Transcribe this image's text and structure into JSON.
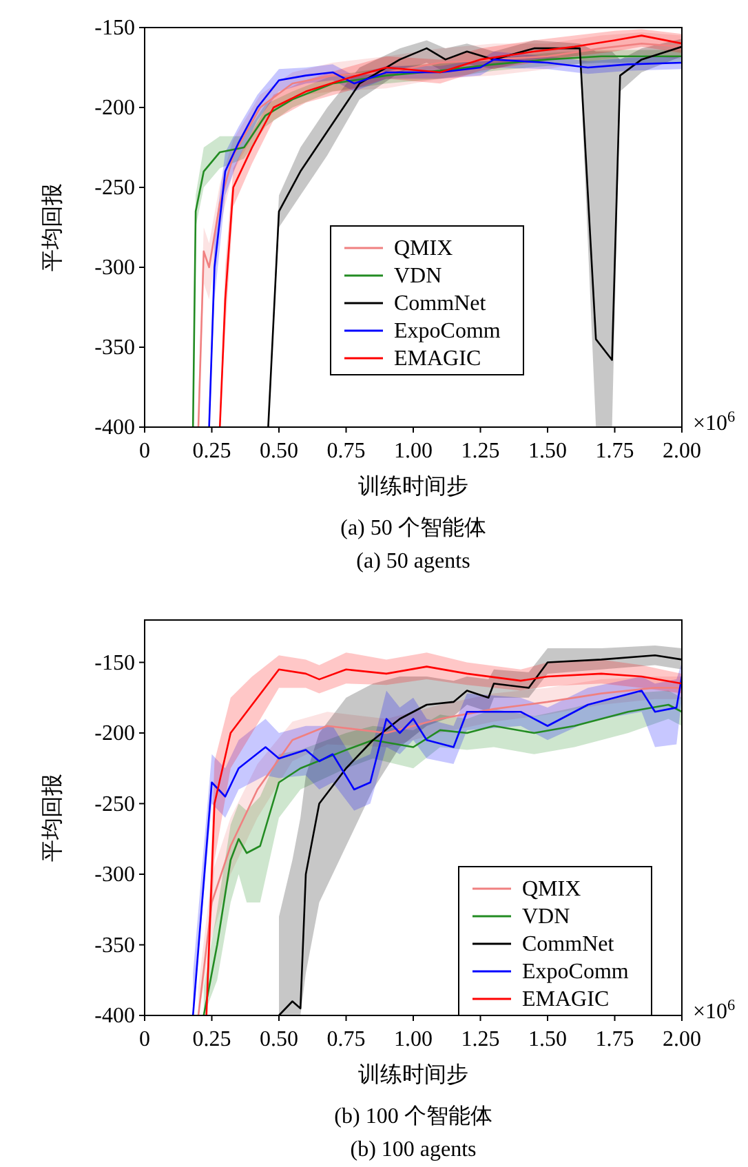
{
  "chart_data": [
    {
      "type": "line",
      "title": "(a) 50 个智能体",
      "subtitle": "(a) 50 agents",
      "xlabel": "训练时间步",
      "ylabel": "平均回报",
      "annotations": [
        "×10$^{6}$"
      ],
      "xlim": [
        0,
        2
      ],
      "ylim": [
        -400,
        -150
      ],
      "xticks": [
        0,
        0.25,
        {
          "value": 0.5,
          "label": "0.50"
        },
        0.75,
        {
          "value": 1,
          "label": "1.00"
        },
        1.25,
        {
          "value": 1.5,
          "label": "1.50"
        },
        1.75,
        {
          "value": 2,
          "label": "2.00"
        }
      ],
      "yticks": [
        -400,
        -350,
        -300,
        -250,
        -200,
        -150
      ],
      "legend": "bottom",
      "grid": false,
      "line_style": "solid",
      "marker": "none",
      "series": [
        {
          "name": "QMIX",
          "color": "#f08080",
          "x": [
            0.2,
            0.22,
            0.24,
            0.28,
            0.33,
            0.43,
            0.55,
            0.7,
            0.9,
            1.1,
            1.3,
            1.5,
            1.7,
            1.85,
            2.0
          ],
          "values": [
            -400,
            -290,
            -300,
            -260,
            -230,
            -200,
            -185,
            -180,
            -178,
            -172,
            -170,
            -168,
            -163,
            -160,
            -162
          ],
          "lower": [
            -400,
            -310,
            -320,
            -275,
            -240,
            -210,
            -193,
            -190,
            -188,
            -182,
            -180,
            -176,
            -170,
            -167,
            -170
          ],
          "upper": [
            -380,
            -275,
            -285,
            -248,
            -220,
            -192,
            -178,
            -172,
            -168,
            -163,
            -160,
            -160,
            -155,
            -153,
            -155
          ]
        },
        {
          "name": "VDN",
          "color": "#228b22",
          "x": [
            0.18,
            0.19,
            0.22,
            0.28,
            0.37,
            0.45,
            0.55,
            0.7,
            0.9,
            1.1,
            1.3,
            1.5,
            1.7,
            2.0
          ],
          "values": [
            -400,
            -265,
            -240,
            -228,
            -225,
            -205,
            -195,
            -185,
            -180,
            -177,
            -173,
            -170,
            -168,
            -168
          ],
          "lower": [
            -400,
            -275,
            -250,
            -238,
            -232,
            -212,
            -200,
            -190,
            -185,
            -182,
            -177,
            -174,
            -172,
            -172
          ],
          "upper": [
            -390,
            -255,
            -225,
            -218,
            -218,
            -198,
            -190,
            -180,
            -175,
            -172,
            -169,
            -166,
            -164,
            -164
          ]
        },
        {
          "name": "CommNet",
          "color": "#000000",
          "x": [
            0.46,
            0.5,
            0.58,
            0.68,
            0.8,
            0.95,
            1.05,
            1.12,
            1.2,
            1.3,
            1.45,
            1.62,
            1.68,
            1.74,
            1.77,
            1.85,
            2.0
          ],
          "values": [
            -400,
            -265,
            -240,
            -215,
            -185,
            -170,
            -163,
            -170,
            -165,
            -170,
            -163,
            -163,
            -345,
            -358,
            -180,
            -170,
            -162
          ],
          "lower": [
            -400,
            -275,
            -255,
            -230,
            -195,
            -178,
            -172,
            -178,
            -173,
            -176,
            -170,
            -168,
            -400,
            -400,
            -190,
            -178,
            -168
          ],
          "upper": [
            -400,
            -255,
            -225,
            -200,
            -175,
            -163,
            -158,
            -163,
            -160,
            -165,
            -158,
            -160,
            -165,
            -165,
            -170,
            -163,
            -157
          ]
        },
        {
          "name": "ExpoComm",
          "color": "#0000ff",
          "x": [
            0.24,
            0.26,
            0.3,
            0.35,
            0.42,
            0.5,
            0.6,
            0.7,
            0.78,
            0.9,
            1.1,
            1.25,
            1.3,
            1.5,
            1.65,
            1.8,
            2.0
          ],
          "values": [
            -400,
            -300,
            -240,
            -222,
            -200,
            -183,
            -180,
            -178,
            -185,
            -178,
            -178,
            -175,
            -170,
            -172,
            -175,
            -173,
            -172
          ],
          "lower": [
            -400,
            -320,
            -255,
            -232,
            -208,
            -190,
            -185,
            -183,
            -190,
            -182,
            -182,
            -180,
            -175,
            -176,
            -179,
            -177,
            -176
          ],
          "upper": [
            -400,
            -280,
            -228,
            -212,
            -192,
            -176,
            -175,
            -173,
            -180,
            -174,
            -174,
            -170,
            -165,
            -168,
            -171,
            -169,
            -168
          ]
        },
        {
          "name": "EMAGIC",
          "color": "#ff0000",
          "x": [
            0.28,
            0.3,
            0.33,
            0.4,
            0.48,
            0.6,
            0.75,
            0.9,
            1.1,
            1.25,
            1.45,
            1.6,
            1.75,
            1.85,
            2.0
          ],
          "values": [
            -400,
            -320,
            -250,
            -225,
            -200,
            -190,
            -182,
            -175,
            -178,
            -170,
            -165,
            -162,
            -158,
            -155,
            -160
          ],
          "lower": [
            -400,
            -340,
            -262,
            -235,
            -208,
            -197,
            -190,
            -182,
            -185,
            -177,
            -172,
            -168,
            -165,
            -162,
            -166
          ],
          "upper": [
            -400,
            -300,
            -238,
            -215,
            -192,
            -183,
            -175,
            -168,
            -170,
            -163,
            -158,
            -155,
            -152,
            -151,
            -154
          ]
        }
      ]
    },
    {
      "type": "line",
      "title": "(b) 100 个智能体",
      "subtitle": "(b) 100 agents",
      "xlabel": "训练时间步",
      "ylabel": "平均回报",
      "annotations": [
        "×10$^{6}$"
      ],
      "xlim": [
        0,
        2
      ],
      "ylim": [
        -400,
        -120
      ],
      "xticks": [
        0,
        0.25,
        {
          "value": 0.5,
          "label": "0.50"
        },
        0.75,
        {
          "value": 1,
          "label": "1.00"
        },
        1.25,
        {
          "value": 1.5,
          "label": "1.50"
        },
        1.75,
        {
          "value": 2,
          "label": "2.00"
        }
      ],
      "yticks": [
        -400,
        -350,
        -300,
        -250,
        -200,
        -150
      ],
      "legend": "bottom right",
      "grid": false,
      "line_style": "solid",
      "marker": "none",
      "series": [
        {
          "name": "QMIX",
          "color": "#f08080",
          "x": [
            0.2,
            0.25,
            0.32,
            0.42,
            0.55,
            0.68,
            0.9,
            1.1,
            1.3,
            1.5,
            1.7,
            1.9,
            2.0
          ],
          "values": [
            -400,
            -320,
            -280,
            -240,
            -205,
            -195,
            -200,
            -190,
            -183,
            -178,
            -172,
            -168,
            -168
          ],
          "lower": [
            -400,
            -345,
            -300,
            -260,
            -220,
            -208,
            -210,
            -200,
            -192,
            -187,
            -180,
            -176,
            -176
          ],
          "upper": [
            -380,
            -300,
            -260,
            -222,
            -192,
            -185,
            -190,
            -180,
            -172,
            -168,
            -162,
            -160,
            -160
          ]
        },
        {
          "name": "VDN",
          "color": "#228b22",
          "x": [
            0.22,
            0.27,
            0.32,
            0.35,
            0.38,
            0.43,
            0.5,
            0.58,
            0.75,
            0.85,
            1.0,
            1.1,
            1.2,
            1.3,
            1.45,
            1.6,
            1.8,
            1.95,
            2.0
          ],
          "values": [
            -400,
            -350,
            -290,
            -275,
            -285,
            -280,
            -235,
            -225,
            -212,
            -205,
            -210,
            -198,
            -200,
            -195,
            -200,
            -195,
            -185,
            -180,
            -185
          ],
          "lower": [
            -400,
            -375,
            -320,
            -300,
            -320,
            -320,
            -260,
            -240,
            -225,
            -218,
            -225,
            -210,
            -212,
            -210,
            -215,
            -210,
            -200,
            -190,
            -195
          ],
          "upper": [
            -380,
            -325,
            -265,
            -250,
            -255,
            -245,
            -215,
            -212,
            -200,
            -195,
            -198,
            -187,
            -190,
            -183,
            -188,
            -182,
            -172,
            -170,
            -175
          ]
        },
        {
          "name": "CommNet",
          "color": "#000000",
          "x": [
            0.5,
            0.55,
            0.58,
            0.6,
            0.65,
            0.75,
            0.85,
            0.95,
            1.05,
            1.15,
            1.2,
            1.28,
            1.3,
            1.43,
            1.5,
            1.7,
            1.9,
            2.0
          ],
          "values": [
            -400,
            -390,
            -395,
            -300,
            -250,
            -225,
            -205,
            -190,
            -180,
            -178,
            -170,
            -175,
            -165,
            -168,
            -150,
            -148,
            -145,
            -148
          ],
          "lower": [
            -400,
            -400,
            -400,
            -370,
            -320,
            -280,
            -240,
            -210,
            -195,
            -188,
            -180,
            -185,
            -175,
            -175,
            -158,
            -155,
            -152,
            -155
          ],
          "upper": [
            -330,
            -290,
            -260,
            -230,
            -200,
            -175,
            -165,
            -160,
            -160,
            -163,
            -160,
            -162,
            -155,
            -157,
            -140,
            -140,
            -138,
            -140
          ]
        },
        {
          "name": "ExpoComm",
          "color": "#0000ff",
          "x": [
            0.18,
            0.25,
            0.3,
            0.35,
            0.45,
            0.5,
            0.6,
            0.65,
            0.7,
            0.78,
            0.84,
            0.9,
            0.95,
            1.0,
            1.05,
            1.15,
            1.2,
            1.4,
            1.5,
            1.65,
            1.85,
            1.9,
            1.98,
            2.0
          ],
          "values": [
            -400,
            -235,
            -245,
            -225,
            -210,
            -218,
            -212,
            -220,
            -215,
            -240,
            -235,
            -190,
            -200,
            -190,
            -205,
            -210,
            -185,
            -185,
            -195,
            -180,
            -170,
            -185,
            -182,
            -160
          ],
          "lower": [
            -400,
            -250,
            -260,
            -240,
            -230,
            -232,
            -230,
            -240,
            -235,
            -255,
            -250,
            -210,
            -215,
            -205,
            -218,
            -222,
            -198,
            -195,
            -205,
            -192,
            -185,
            -210,
            -208,
            -175
          ],
          "upper": [
            -370,
            -215,
            -225,
            -205,
            -190,
            -200,
            -195,
            -195,
            -195,
            -220,
            -215,
            -170,
            -182,
            -175,
            -190,
            -195,
            -172,
            -175,
            -182,
            -168,
            -160,
            -165,
            -162,
            -150
          ]
        },
        {
          "name": "EMAGIC",
          "color": "#ff0000",
          "x": [
            0.23,
            0.26,
            0.32,
            0.4,
            0.5,
            0.6,
            0.65,
            0.75,
            0.9,
            1.05,
            1.2,
            1.4,
            1.5,
            1.7,
            1.85,
            2.0
          ],
          "values": [
            -400,
            -250,
            -200,
            -180,
            -155,
            -158,
            -162,
            -155,
            -158,
            -153,
            -158,
            -163,
            -160,
            -158,
            -160,
            -165
          ],
          "lower": [
            -400,
            -290,
            -225,
            -200,
            -168,
            -168,
            -172,
            -165,
            -166,
            -162,
            -166,
            -170,
            -167,
            -165,
            -168,
            -172
          ],
          "upper": [
            -380,
            -220,
            -175,
            -160,
            -145,
            -148,
            -152,
            -143,
            -148,
            -143,
            -150,
            -155,
            -150,
            -148,
            -152,
            -158
          ]
        }
      ]
    }
  ]
}
